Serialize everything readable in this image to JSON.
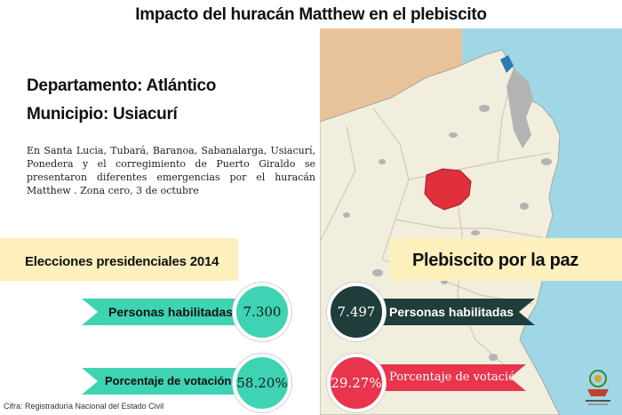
{
  "title": "Impacto del huracán Matthew en el plebiscito",
  "department": "Departamento: Atlántico",
  "municipality": "Municipio: Usiacurí",
  "description": "En Santa Lucia, Tubará, Baranoa, Sabanalarga, Usiacurí, Ponedera y el corregimiento de Puerto Giraldo se presentaron diferentes emergencias por el huracán Matthew . Zona cero, 3 de octubre",
  "presidential": {
    "heading": "Elecciones presidenciales 2014",
    "eligible_label": "Personas habilitadas",
    "eligible_value": "7.300",
    "turnout_label": "Porcentaje de votación",
    "turnout_value": "58.20%"
  },
  "plebiscite": {
    "heading": "Plebiscito por la paz",
    "eligible_label": "Personas habilitadas",
    "eligible_value": "7.497",
    "turnout_label": "Porcentaje de votación",
    "turnout_value": "29.27%"
  },
  "source": "Cifra: Registraduría Nacional del Estado Civil",
  "colors": {
    "teal": "#3ed3b3",
    "dark_teal": "#1f3d3b",
    "red": "#e8344c",
    "band": "#fdf0bd",
    "highlight_municipality": "#e0303c",
    "sea": "#e8c39a",
    "land": "#f1eedd",
    "map_sea_right": "#9fd7e6"
  },
  "icons": [
    "logo-emblem-icon"
  ]
}
